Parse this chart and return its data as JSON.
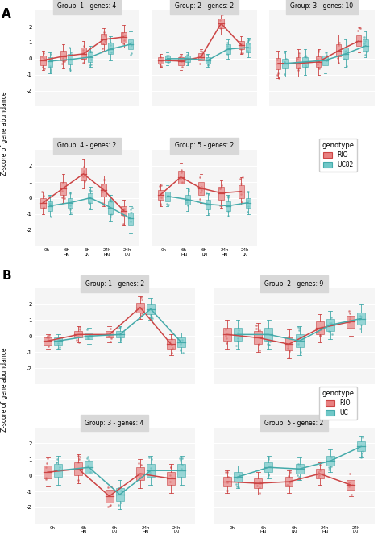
{
  "panel_A": {
    "groups": [
      {
        "title": "Group: 1 - genes: 4",
        "row": 0,
        "col": 0
      },
      {
        "title": "Group: 2 - genes: 2",
        "row": 0,
        "col": 1
      },
      {
        "title": "Group: 3 - genes: 10",
        "row": 0,
        "col": 2
      },
      {
        "title": "Group: 4 - genes: 2",
        "row": 1,
        "col": 0
      },
      {
        "title": "Group: 5 - genes: 2",
        "row": 1,
        "col": 1
      }
    ],
    "x_labels": [
      "0h",
      "6h_HN",
      "6h_LN",
      "24h_HN",
      "24h_LN"
    ],
    "ylim": [
      -3,
      3
    ],
    "yticks": [
      -2,
      -1,
      0,
      1,
      2
    ],
    "data": {
      "RIO": {
        "group1": {
          "medians": [
            -0.1,
            0.15,
            0.3,
            1.2,
            1.35
          ],
          "q1": [
            -0.4,
            -0.1,
            0.0,
            0.9,
            1.0
          ],
          "q3": [
            0.2,
            0.5,
            0.7,
            1.55,
            1.65
          ],
          "whislo": [
            -0.7,
            -0.6,
            -0.3,
            0.5,
            0.7
          ],
          "whishi": [
            0.5,
            0.9,
            1.1,
            1.9,
            2.1
          ]
        },
        "group2": {
          "medians": [
            -0.1,
            -0.15,
            0.1,
            2.2,
            0.85
          ],
          "q1": [
            -0.3,
            -0.4,
            -0.1,
            1.9,
            0.6
          ],
          "q3": [
            0.1,
            0.1,
            0.35,
            2.5,
            1.1
          ],
          "whislo": [
            -0.5,
            -0.7,
            -0.3,
            1.5,
            0.3
          ],
          "whishi": [
            0.3,
            0.3,
            0.6,
            2.8,
            1.4
          ]
        },
        "group3": {
          "medians": [
            -0.3,
            -0.3,
            -0.2,
            0.5,
            1.1
          ],
          "q1": [
            -0.65,
            -0.6,
            -0.5,
            0.15,
            0.8
          ],
          "q3": [
            0.05,
            0.1,
            0.15,
            0.9,
            1.45
          ],
          "whislo": [
            -1.2,
            -1.1,
            -1.0,
            -0.3,
            0.4
          ],
          "whishi": [
            0.5,
            0.6,
            0.6,
            1.5,
            2.0
          ]
        },
        "group4": {
          "medians": [
            -0.3,
            0.6,
            1.5,
            0.5,
            -0.8
          ],
          "q1": [
            -0.6,
            0.2,
            1.1,
            0.1,
            -1.1
          ],
          "q3": [
            0.0,
            1.0,
            1.9,
            0.9,
            -0.5
          ],
          "whislo": [
            -1.0,
            -0.3,
            0.6,
            -0.5,
            -1.7
          ],
          "whishi": [
            0.4,
            1.5,
            2.4,
            1.4,
            -0.1
          ]
        },
        "group5": {
          "medians": [
            0.2,
            1.3,
            0.6,
            0.3,
            0.4
          ],
          "q1": [
            -0.1,
            0.9,
            0.2,
            -0.1,
            0.0
          ],
          "q3": [
            0.5,
            1.7,
            1.0,
            0.7,
            0.8
          ],
          "whislo": [
            -0.5,
            0.4,
            -0.3,
            -0.6,
            -0.4
          ],
          "whishi": [
            0.9,
            2.2,
            1.5,
            1.1,
            1.3
          ]
        }
      },
      "UC82": {
        "group1": {
          "medians": [
            -0.15,
            -0.05,
            0.1,
            0.6,
            0.9
          ],
          "q1": [
            -0.5,
            -0.35,
            -0.2,
            0.3,
            0.6
          ],
          "q3": [
            0.1,
            0.3,
            0.4,
            1.0,
            1.2
          ],
          "whislo": [
            -0.9,
            -0.8,
            -0.5,
            -0.1,
            0.2
          ],
          "whishi": [
            0.4,
            0.7,
            0.8,
            1.4,
            1.7
          ]
        },
        "group2": {
          "medians": [
            0.0,
            0.0,
            -0.1,
            0.6,
            0.7
          ],
          "q1": [
            -0.2,
            -0.2,
            -0.3,
            0.3,
            0.4
          ],
          "q3": [
            0.2,
            0.2,
            0.1,
            0.9,
            1.0
          ],
          "whislo": [
            -0.4,
            -0.4,
            -0.5,
            0.0,
            0.1
          ],
          "whishi": [
            0.4,
            0.4,
            0.3,
            1.2,
            1.3
          ]
        },
        "group3": {
          "medians": [
            -0.3,
            -0.2,
            -0.1,
            0.3,
            0.8
          ],
          "q1": [
            -0.6,
            -0.5,
            -0.4,
            0.0,
            0.5
          ],
          "q3": [
            0.0,
            0.1,
            0.2,
            0.7,
            1.2
          ],
          "whislo": [
            -1.1,
            -1.0,
            -0.9,
            -0.5,
            0.1
          ],
          "whishi": [
            0.5,
            0.6,
            0.7,
            1.2,
            1.7
          ]
        },
        "group4": {
          "medians": [
            -0.5,
            -0.3,
            0.0,
            -0.6,
            -1.3
          ],
          "q1": [
            -0.8,
            -0.6,
            -0.3,
            -1.0,
            -1.7
          ],
          "q3": [
            -0.2,
            0.0,
            0.3,
            -0.2,
            -0.9
          ],
          "whislo": [
            -1.2,
            -1.0,
            -0.7,
            -1.5,
            -2.2
          ],
          "whishi": [
            0.2,
            0.4,
            0.7,
            0.2,
            -0.5
          ]
        },
        "group5": {
          "medians": [
            0.1,
            -0.1,
            -0.4,
            -0.5,
            -0.3
          ],
          "q1": [
            -0.2,
            -0.4,
            -0.7,
            -0.8,
            -0.6
          ],
          "q3": [
            0.4,
            0.2,
            -0.1,
            -0.2,
            0.0
          ],
          "whislo": [
            -0.5,
            -0.8,
            -1.1,
            -1.2,
            -1.0
          ],
          "whishi": [
            0.8,
            0.6,
            0.3,
            0.2,
            0.4
          ]
        }
      }
    }
  },
  "panel_B": {
    "groups": [
      {
        "title": "Group: 1 - genes: 2",
        "row": 0,
        "col": 0
      },
      {
        "title": "Group: 2 - genes: 9",
        "row": 0,
        "col": 1
      },
      {
        "title": "Group: 3 - genes: 4",
        "row": 1,
        "col": 0
      },
      {
        "title": "Group: 5 - genes: 2",
        "row": 1,
        "col": 1
      }
    ],
    "x_labels": [
      "0h",
      "6h_HN",
      "6h_LN",
      "24h_HN",
      "24h_LN"
    ],
    "ylim": [
      -3,
      3
    ],
    "yticks": [
      -2,
      -1,
      0,
      1,
      2
    ],
    "data": {
      "RIO": {
        "group1": {
          "medians": [
            -0.3,
            0.1,
            0.1,
            1.8,
            -0.5
          ],
          "q1": [
            -0.55,
            -0.1,
            -0.1,
            1.5,
            -0.8
          ],
          "q3": [
            -0.1,
            0.3,
            0.3,
            2.1,
            -0.2
          ],
          "whislo": [
            -0.8,
            -0.4,
            -0.4,
            1.1,
            -1.2
          ],
          "whishi": [
            0.1,
            0.6,
            0.6,
            2.5,
            0.1
          ]
        },
        "group2": {
          "medians": [
            0.1,
            -0.1,
            -0.5,
            0.5,
            0.9
          ],
          "q1": [
            -0.3,
            -0.5,
            -0.9,
            0.1,
            0.5
          ],
          "q3": [
            0.5,
            0.3,
            -0.1,
            0.9,
            1.3
          ],
          "whislo": [
            -0.8,
            -1.0,
            -1.4,
            -0.4,
            0.0
          ],
          "whishi": [
            1.0,
            0.8,
            0.4,
            1.4,
            1.8
          ]
        },
        "group3": {
          "medians": [
            0.2,
            0.4,
            -1.3,
            0.1,
            -0.2
          ],
          "q1": [
            -0.2,
            0.0,
            -1.7,
            -0.3,
            -0.6
          ],
          "q3": [
            0.6,
            0.8,
            -0.9,
            0.5,
            0.2
          ],
          "whislo": [
            -0.7,
            -0.5,
            -2.2,
            -0.8,
            -1.1
          ],
          "whishi": [
            1.1,
            1.3,
            -0.4,
            1.0,
            0.7
          ]
        },
        "group5": {
          "medians": [
            -0.4,
            -0.5,
            -0.4,
            0.1,
            -0.6
          ],
          "q1": [
            -0.7,
            -0.8,
            -0.7,
            -0.2,
            -0.9
          ],
          "q3": [
            -0.1,
            -0.2,
            -0.1,
            0.4,
            -0.3
          ],
          "whislo": [
            -1.1,
            -1.2,
            -1.1,
            -0.6,
            -1.3
          ],
          "whishi": [
            0.3,
            0.2,
            0.3,
            0.8,
            0.1
          ]
        }
      },
      "UC": {
        "group1": {
          "medians": [
            -0.3,
            0.0,
            0.1,
            1.7,
            -0.4
          ],
          "q1": [
            -0.55,
            -0.2,
            -0.1,
            1.4,
            -0.7
          ],
          "q3": [
            -0.1,
            0.2,
            0.3,
            2.0,
            -0.1
          ],
          "whislo": [
            -0.8,
            -0.5,
            -0.4,
            1.0,
            -1.1
          ],
          "whishi": [
            0.1,
            0.5,
            0.6,
            2.4,
            0.2
          ]
        },
        "group2": {
          "medians": [
            0.1,
            0.1,
            -0.3,
            0.7,
            1.1
          ],
          "q1": [
            -0.3,
            -0.3,
            -0.7,
            0.3,
            0.7
          ],
          "q3": [
            0.5,
            0.5,
            0.1,
            1.1,
            1.5
          ],
          "whislo": [
            -0.8,
            -0.8,
            -1.2,
            -0.2,
            0.2
          ],
          "whishi": [
            1.0,
            1.0,
            0.6,
            1.6,
            2.0
          ]
        },
        "group3": {
          "medians": [
            0.3,
            0.5,
            -1.2,
            0.3,
            0.3
          ],
          "q1": [
            -0.1,
            0.1,
            -1.6,
            -0.1,
            -0.1
          ],
          "q3": [
            0.7,
            0.9,
            -0.8,
            0.7,
            0.7
          ],
          "whislo": [
            -0.6,
            -0.4,
            -2.1,
            -0.6,
            -0.6
          ],
          "whishi": [
            1.2,
            1.4,
            -0.3,
            1.2,
            1.2
          ]
        },
        "group5": {
          "medians": [
            -0.1,
            0.5,
            0.4,
            0.9,
            1.8
          ],
          "q1": [
            -0.4,
            0.2,
            0.1,
            0.6,
            1.5
          ],
          "q3": [
            0.2,
            0.8,
            0.7,
            1.2,
            2.1
          ],
          "whislo": [
            -0.8,
            -0.2,
            -0.3,
            0.2,
            1.1
          ],
          "whishi": [
            0.6,
            1.2,
            1.1,
            1.6,
            2.5
          ]
        }
      }
    }
  },
  "color_RIO": "#E88080",
  "color_UC82": "#70C8C8",
  "color_line_RIO": "#CC4444",
  "color_line_UC": "#44AAAA",
  "bg_panel": "#EBEBEB",
  "bg_plot": "#F5F5F5",
  "grid_color": "#FFFFFF",
  "ylabel": "Z-score of gene abundance",
  "legend_title": "genotype"
}
